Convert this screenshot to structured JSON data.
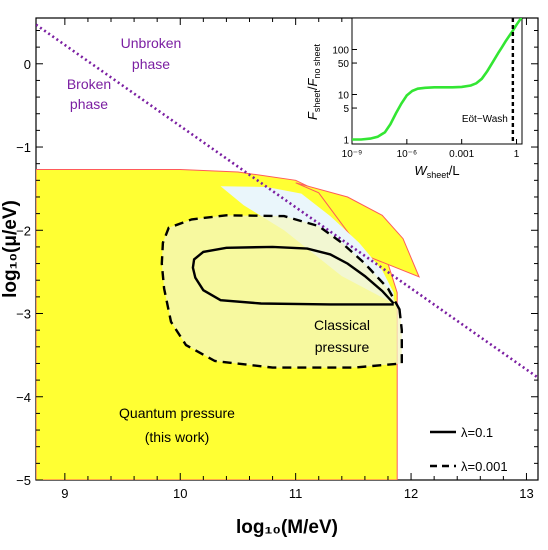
{
  "chart_data": [
    {
      "type": "area",
      "xlabel": "log₁₀(M/eV)",
      "ylabel": "log₁₀(μ/eV)",
      "xlim": [
        8.75,
        13.1
      ],
      "ylim": [
        -5.0,
        0.55
      ],
      "xticks": [
        "9",
        "10",
        "11",
        "12",
        "13"
      ],
      "yticks": [
        "0",
        "−1",
        "−2",
        "−3",
        "−4",
        "−5"
      ],
      "grid": false,
      "regions": {
        "quantum": {
          "label": [
            "Quantum pressure",
            "(this work)"
          ],
          "color": "#ffff33",
          "boundary": [
            [
              8.75,
              -1.27
            ],
            [
              10.0,
              -1.27
            ],
            [
              10.5,
              -1.3
            ],
            [
              11.0,
              -1.4
            ],
            [
              11.3,
              -1.6
            ],
            [
              11.6,
              -1.97
            ],
            [
              11.8,
              -2.4
            ],
            [
              11.88,
              -2.75
            ],
            [
              11.88,
              -5.0
            ],
            [
              8.75,
              -5.0
            ]
          ]
        },
        "quantum_thin": {
          "color": "#ffff33",
          "boundary": [
            [
              11.0,
              -1.43
            ],
            [
              11.45,
              -1.6
            ],
            [
              11.75,
              -1.82
            ],
            [
              11.93,
              -2.1
            ],
            [
              12.07,
              -2.56
            ],
            [
              11.6,
              -2.3
            ],
            [
              11.2,
              -1.55
            ]
          ]
        },
        "classical": {
          "label": [
            "Classical",
            "pressure"
          ],
          "color": "#f4f7c4"
        },
        "white_wedge": {
          "color": "#eaf6fb",
          "boundary": [
            [
              10.35,
              -1.47
            ],
            [
              10.75,
              -1.48
            ],
            [
              11.05,
              -1.56
            ],
            [
              11.3,
              -1.83
            ],
            [
              11.55,
              -2.15
            ],
            [
              11.75,
              -2.48
            ],
            [
              11.85,
              -2.75
            ],
            [
              11.85,
              -2.88
            ],
            [
              11.4,
              -2.55
            ],
            [
              10.9,
              -2.0
            ],
            [
              10.55,
              -1.7
            ]
          ]
        }
      },
      "series": [
        {
          "name": "λ=0.1",
          "style": "solid",
          "color": "#000000",
          "x": [
            11.85,
            11.75,
            11.6,
            11.45,
            11.3,
            11.1,
            10.8,
            10.4,
            10.2,
            10.12,
            10.11,
            10.13,
            10.2,
            10.35,
            10.7,
            11.3,
            11.85
          ],
          "y": [
            -2.88,
            -2.73,
            -2.55,
            -2.4,
            -2.29,
            -2.22,
            -2.2,
            -2.21,
            -2.26,
            -2.35,
            -2.45,
            -2.57,
            -2.72,
            -2.84,
            -2.88,
            -2.89,
            -2.89
          ]
        },
        {
          "name": "λ=0.001",
          "style": "dashed",
          "color": "#000000",
          "x": [
            11.9,
            11.8,
            11.6,
            11.4,
            11.2,
            10.9,
            10.4,
            10.1,
            9.9,
            9.85,
            9.84,
            9.86,
            9.92,
            10.05,
            10.3,
            10.8,
            11.5,
            11.92,
            11.92,
            11.9
          ],
          "y": [
            -2.95,
            -2.7,
            -2.4,
            -2.15,
            -1.95,
            -1.83,
            -1.82,
            -1.87,
            -1.97,
            -2.15,
            -2.4,
            -2.7,
            -3.1,
            -3.38,
            -3.57,
            -3.65,
            -3.65,
            -3.6,
            -3.2,
            -2.95
          ]
        },
        {
          "name": "phase-boundary",
          "style": "dotted",
          "color": "#7b1fa2",
          "x": [
            8.75,
            13.1
          ],
          "y": [
            0.47,
            -3.77
          ]
        }
      ],
      "annotations": {
        "unbroken_phase": [
          "Unbroken",
          "phase"
        ],
        "broken_phase": [
          "Broken",
          "phase"
        ]
      },
      "legend": {
        "placement": "bottom-right",
        "entries": [
          {
            "label": "λ=0.1",
            "style": "solid"
          },
          {
            "label": "λ=0.001",
            "style": "dashed"
          }
        ]
      }
    },
    {
      "type": "line",
      "scale": "log-log",
      "xlabel": "W_sheet/L",
      "ylabel": "F_sheet/F_no sheet",
      "xlim_log10": [
        -9,
        0.3
      ],
      "ylim_log10": [
        -0.1,
        2.7
      ],
      "xticks": [
        "10⁻⁹",
        "10⁻⁶",
        "0.001",
        "1"
      ],
      "yticks": [
        "1",
        "5",
        "10",
        "50",
        "100"
      ],
      "series": [
        {
          "name": "F_sheet/F_no sheet",
          "color": "#33e633",
          "x_log10": [
            -9.0,
            -8.5,
            -8.0,
            -7.6,
            -7.2,
            -6.9,
            -6.6,
            -6.3,
            -6.0,
            -5.7,
            -5.4,
            -5.0,
            -4.5,
            -4.0,
            -3.5,
            -3.0,
            -2.5,
            -2.2,
            -1.9,
            -1.6,
            -1.3,
            -1.0,
            -0.8,
            -0.6,
            -0.4,
            -0.2,
            0.0,
            0.15,
            0.3
          ],
          "y_log10": [
            0.0,
            0.0,
            0.02,
            0.06,
            0.16,
            0.34,
            0.58,
            0.8,
            0.98,
            1.08,
            1.13,
            1.15,
            1.16,
            1.16,
            1.16,
            1.17,
            1.2,
            1.25,
            1.35,
            1.52,
            1.72,
            1.92,
            2.05,
            2.18,
            2.3,
            2.42,
            2.55,
            2.64,
            2.72
          ]
        }
      ],
      "annotations": {
        "eot_wash": "Eöt−Wash",
        "eot_wash_x_log10": -0.2
      }
    }
  ]
}
